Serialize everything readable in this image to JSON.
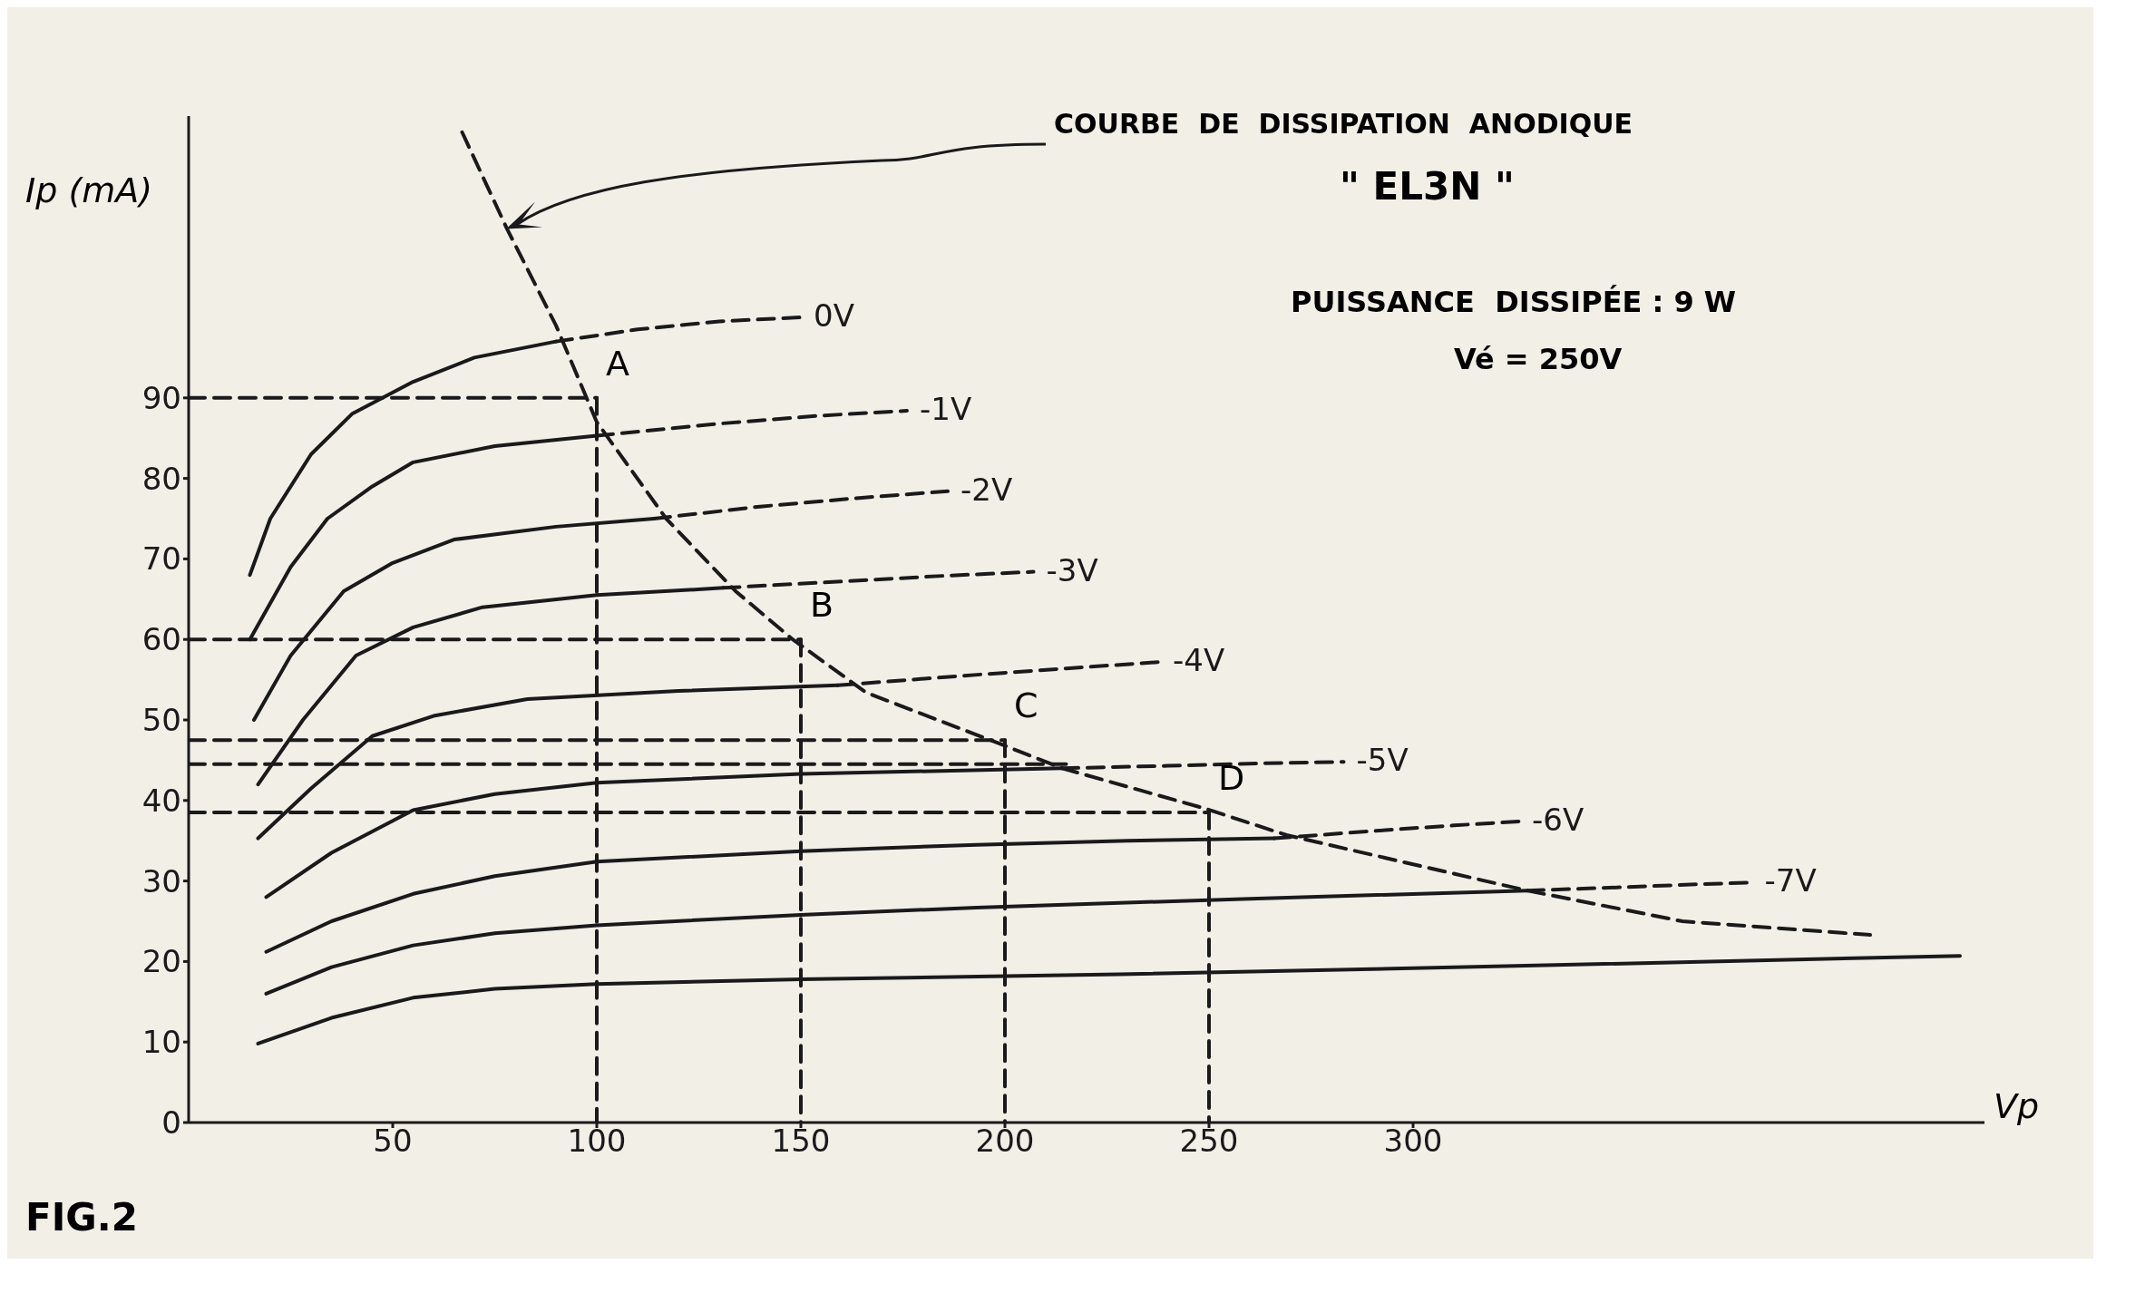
{
  "chart_data": {
    "type": "line",
    "xlabel": "Vp",
    "ylabel": "Ip (mA)",
    "xlim": [
      0,
      440
    ],
    "ylim": [
      0,
      125
    ],
    "xticks": [
      50,
      100,
      150,
      200,
      250,
      300
    ],
    "yticks": [
      0,
      10,
      20,
      30,
      40,
      50,
      60,
      70,
      80,
      90
    ],
    "marker": "none",
    "series": [
      {
        "color": "#1a1a1a",
        "line_style": "solid",
        "x": [
          15,
          20,
          30,
          40,
          55,
          70,
          90
        ],
        "values": [
          68,
          75,
          83,
          88,
          92,
          95,
          97
        ]
      },
      {
        "name": "0V",
        "color": "#1a1a1a",
        "line_style": "dashed",
        "x": [
          90,
          110,
          130,
          150
        ],
        "values": [
          97,
          98.5,
          99.5,
          100
        ]
      },
      {
        "color": "#1a1a1a",
        "line_style": "solid",
        "x": [
          15,
          25,
          34,
          45,
          55,
          75,
          100
        ],
        "values": [
          60,
          69,
          75,
          79,
          82,
          84,
          85.3
        ]
      },
      {
        "name": "-1V",
        "color": "#1a1a1a",
        "line_style": "dashed",
        "x": [
          100,
          130,
          155,
          176
        ],
        "values": [
          85.3,
          86.8,
          87.8,
          88.4
        ]
      },
      {
        "color": "#1a1a1a",
        "line_style": "solid",
        "x": [
          16,
          25,
          38,
          50,
          65,
          90,
          114
        ],
        "values": [
          50,
          58,
          66,
          69.5,
          72.4,
          74,
          75
        ]
      },
      {
        "name": "-2V",
        "color": "#1a1a1a",
        "line_style": "dashed",
        "x": [
          114,
          140,
          165,
          186
        ],
        "values": [
          75,
          76.5,
          77.6,
          78.4
        ]
      },
      {
        "color": "#1a1a1a",
        "line_style": "solid",
        "x": [
          17,
          28,
          41,
          55,
          72,
          100,
          131
        ],
        "values": [
          42,
          50,
          58,
          61.5,
          64,
          65.5,
          66.4
        ]
      },
      {
        "name": "-3V",
        "color": "#1a1a1a",
        "line_style": "dashed",
        "x": [
          131,
          160,
          185,
          207
        ],
        "values": [
          66.4,
          67.2,
          67.9,
          68.4
        ]
      },
      {
        "color": "#1a1a1a",
        "line_style": "solid",
        "x": [
          17,
          30,
          45,
          60,
          83,
          120,
          159
        ],
        "values": [
          35.3,
          41.5,
          48,
          50.5,
          52.6,
          53.6,
          54.3
        ]
      },
      {
        "name": "-4V",
        "color": "#1a1a1a",
        "line_style": "dashed",
        "x": [
          159,
          190,
          215,
          238
        ],
        "values": [
          54.3,
          55.5,
          56.4,
          57.2
        ]
      },
      {
        "color": "#1a1a1a",
        "line_style": "solid",
        "x": [
          19,
          35,
          55,
          75,
          100,
          150,
          214
        ],
        "values": [
          28,
          33.5,
          38.8,
          40.8,
          42.2,
          43.3,
          44
        ]
      },
      {
        "name": "-5V",
        "color": "#1a1a1a",
        "line_style": "dashed",
        "x": [
          214,
          240,
          262,
          283
        ],
        "values": [
          44,
          44.3,
          44.6,
          44.8
        ]
      },
      {
        "color": "#1a1a1a",
        "line_style": "solid",
        "x": [
          19,
          35,
          55,
          75,
          100,
          150,
          193,
          230,
          266
        ],
        "values": [
          21.2,
          25,
          28.4,
          30.6,
          32.4,
          33.7,
          34.5,
          35,
          35.3
        ]
      },
      {
        "name": "-6V",
        "color": "#1a1a1a",
        "line_style": "dashed",
        "x": [
          266,
          290,
          310,
          326
        ],
        "values": [
          35.3,
          36.2,
          36.9,
          37.4
        ]
      },
      {
        "color": "#1a1a1a",
        "line_style": "solid",
        "x": [
          19,
          35,
          55,
          75,
          100,
          150,
          193,
          260,
          328
        ],
        "values": [
          16,
          19.3,
          22,
          23.5,
          24.5,
          25.8,
          26.7,
          27.8,
          28.8
        ]
      },
      {
        "name": "-7V",
        "color": "#1a1a1a",
        "line_style": "dashed",
        "x": [
          328,
          350,
          370,
          383
        ],
        "values": [
          28.8,
          29.2,
          29.6,
          29.8
        ]
      },
      {
        "color": "#1a1a1a",
        "line_style": "solid",
        "x": [
          17,
          35,
          55,
          75,
          100,
          150,
          228,
          330,
          434
        ],
        "values": [
          9.8,
          13,
          15.5,
          16.6,
          17.2,
          17.8,
          18.4,
          19.5,
          20.7
        ]
      },
      {
        "color": "#1a1a1a",
        "line_style": "dashed",
        "x": [
          67,
          78,
          90,
          100,
          117,
          134,
          148,
          166,
          199,
          214,
          249,
          269,
          328,
          366,
          412
        ],
        "values": [
          123,
          111,
          99,
          87,
          75,
          66,
          60,
          53.4,
          47,
          44,
          39,
          35.7,
          28.8,
          25,
          23.3
        ]
      },
      {
        "color": "#1a1a1a",
        "line_style": "dashed",
        "x": [
          0,
          100
        ],
        "values": [
          90,
          90
        ]
      },
      {
        "color": "#1a1a1a",
        "line_style": "dashed",
        "x": [
          100,
          100
        ],
        "values": [
          90,
          0
        ]
      },
      {
        "color": "#1a1a1a",
        "line_style": "dashed",
        "x": [
          0,
          150
        ],
        "values": [
          60,
          60
        ]
      },
      {
        "color": "#1a1a1a",
        "line_style": "dashed",
        "x": [
          150,
          150
        ],
        "values": [
          60,
          0
        ]
      },
      {
        "color": "#1a1a1a",
        "line_style": "dashed",
        "x": [
          0,
          200
        ],
        "values": [
          47.5,
          47.5
        ]
      },
      {
        "color": "#1a1a1a",
        "line_style": "dashed",
        "x": [
          0,
          215
        ],
        "values": [
          44.5,
          44.5
        ]
      },
      {
        "color": "#1a1a1a",
        "line_style": "dashed",
        "x": [
          200,
          200
        ],
        "values": [
          47.5,
          0
        ]
      },
      {
        "color": "#1a1a1a",
        "line_style": "dashed",
        "x": [
          0,
          250
        ],
        "values": [
          38.5,
          38.5
        ]
      },
      {
        "color": "#1a1a1a",
        "line_style": "dashed",
        "x": [
          250,
          250
        ],
        "values": [
          38.5,
          0
        ]
      }
    ],
    "annotations": [
      "COURBE  DE  DISSIPATION  ANODIQUE",
      "\" EL3N \"",
      "PUISSANCE  DISSIPÉE : 9 W",
      "Vé = 250V",
      "FIG.2",
      {
        "text": "A",
        "x": 100,
        "y": 90
      },
      {
        "text": "B",
        "x": 150,
        "y": 60
      },
      {
        "text": "C",
        "x": 200,
        "y": 47.5
      },
      {
        "text": "D",
        "x": 250,
        "y": 38.5
      }
    ]
  }
}
